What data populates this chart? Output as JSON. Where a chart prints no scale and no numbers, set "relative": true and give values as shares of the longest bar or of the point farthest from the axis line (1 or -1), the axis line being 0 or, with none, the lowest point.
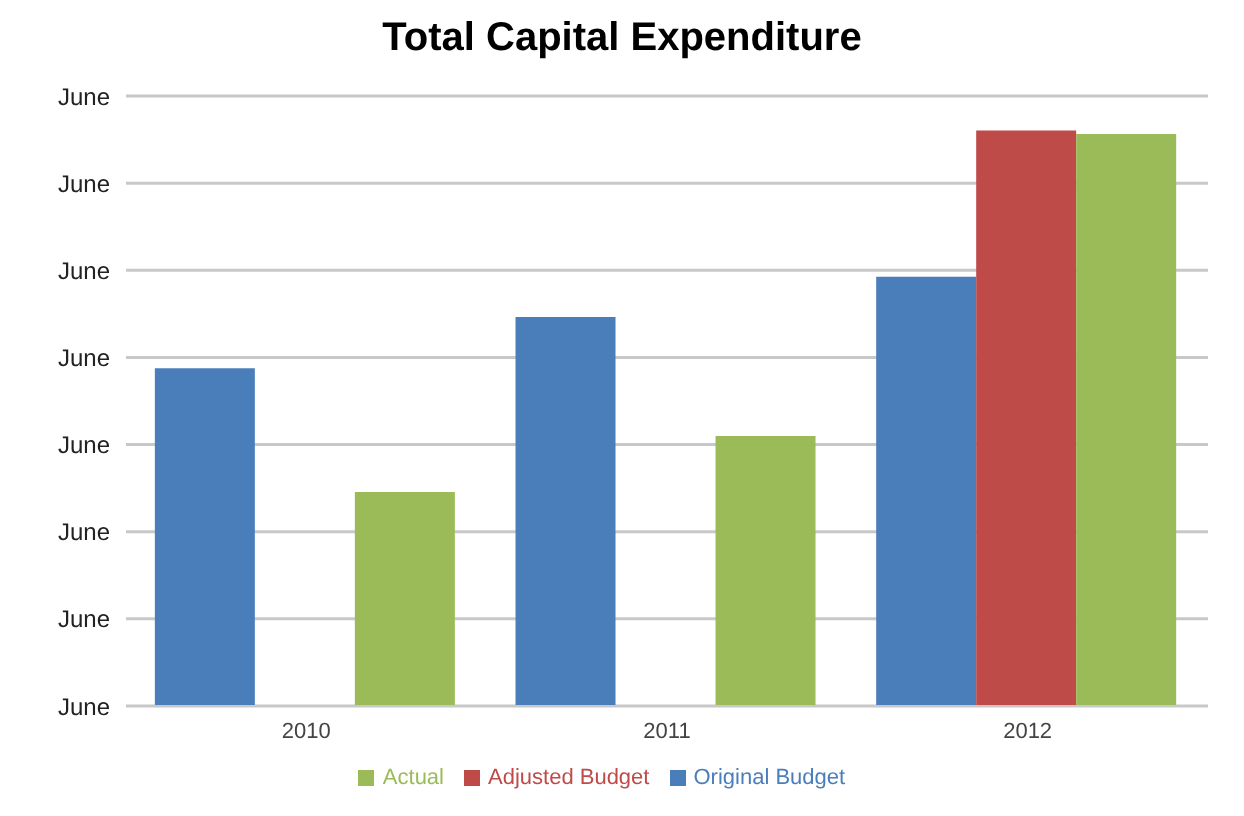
{
  "chart_data": {
    "type": "bar",
    "title": "Total Capital Expenditure",
    "categories": [
      "2010",
      "2011",
      "2012"
    ],
    "relative": true,
    "series": [
      {
        "name": "Original Budget",
        "color": "#4a7ebb",
        "values": [
          0.587,
          0.676,
          0.746
        ]
      },
      {
        "name": "Adjusted Budget",
        "color": "#be4b48",
        "values": [
          null,
          null,
          1
        ]
      },
      {
        "name": "Actual",
        "color": "#9bbb59",
        "values": [
          0.372,
          0.469,
          0.994
        ]
      }
    ],
    "annotations": [
      "June",
      "June",
      "June",
      "June",
      "June",
      "June",
      "June",
      "June"
    ],
    "grid": "y",
    "legend": "bottom"
  }
}
